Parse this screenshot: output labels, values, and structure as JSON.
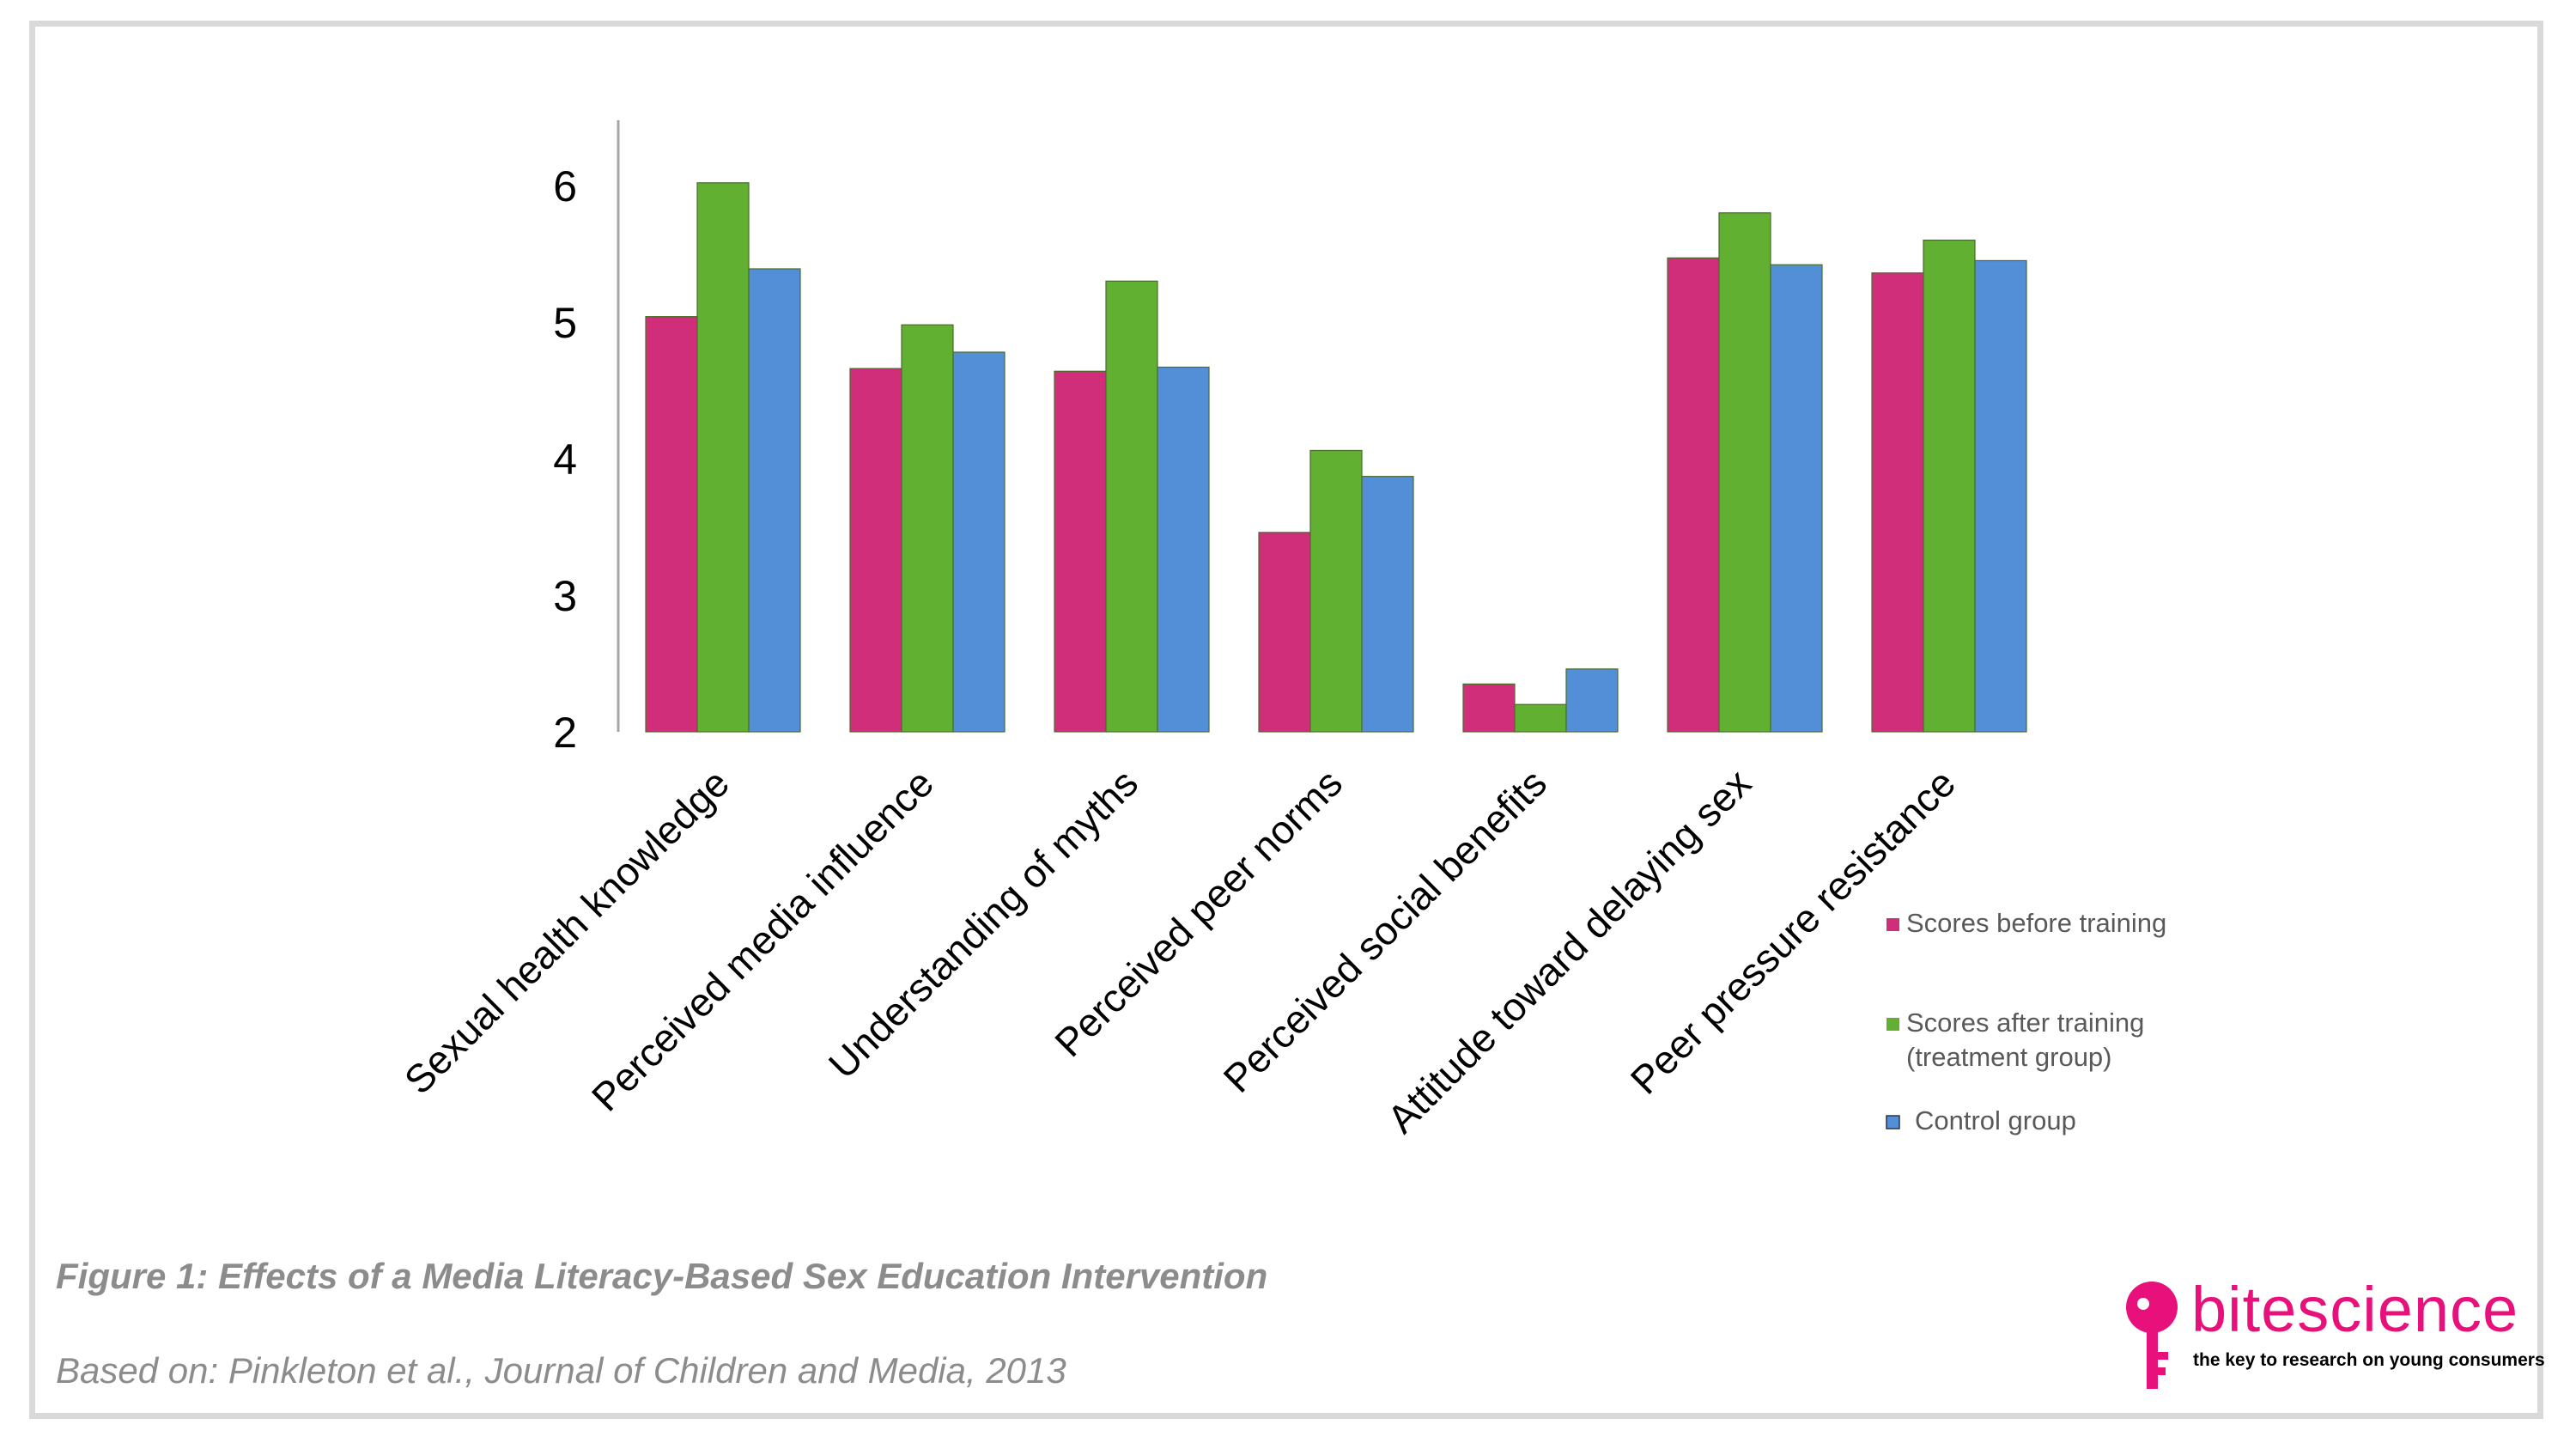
{
  "figure": {
    "caption_title": "Figure 1: Effects of a Media Literacy-Based Sex Education Intervention",
    "caption_source": "Based on: Pinkleton et al., Journal of Children and Media, 2013"
  },
  "brand": {
    "name": "bitescience",
    "tagline": "the key to research on young consumers",
    "color": "#e8107a"
  },
  "chart_data": {
    "type": "bar",
    "title": "",
    "xlabel": "",
    "ylabel": "",
    "ylim": [
      2,
      6.5
    ],
    "yticks": [
      2,
      3,
      4,
      5,
      6
    ],
    "grid": false,
    "legend_position": "right",
    "categories": [
      "Sexual health knowledge",
      "Perceived media influence",
      "Understanding of myths",
      "Perceived peer norms",
      "Perceived social benefits",
      "Attitude toward delaying sex",
      "Peer pressure resistance"
    ],
    "series": [
      {
        "name": "Scores before training",
        "color": "#d02d7a",
        "values": [
          5.04,
          4.66,
          4.64,
          3.46,
          2.35,
          5.47,
          5.36
        ]
      },
      {
        "name": "Scores after training (treatment group)",
        "legend_lines": [
          "Scores after training",
          "(treatment group)"
        ],
        "color": "#62b032",
        "values": [
          6.02,
          4.98,
          5.3,
          4.06,
          2.2,
          5.8,
          5.6
        ]
      },
      {
        "name": "Control group",
        "color": "#528fd6",
        "values": [
          5.39,
          4.78,
          4.67,
          3.87,
          2.46,
          5.42,
          5.45
        ]
      }
    ]
  }
}
